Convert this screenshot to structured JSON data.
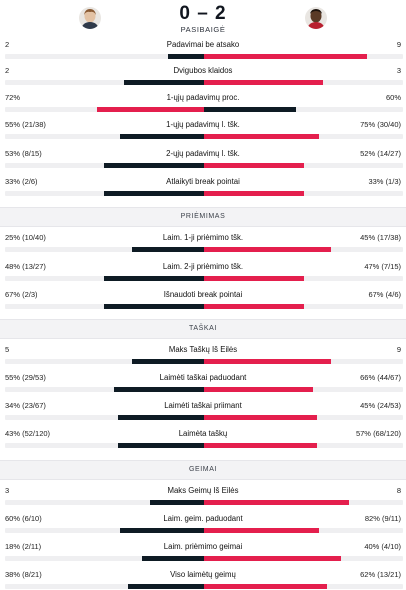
{
  "header": {
    "score": "0 – 2",
    "status": "PASIBAIGĖ",
    "player_left_icon": "player-avatar",
    "player_right_icon": "player-avatar"
  },
  "colors": {
    "winner": "#e41f4d",
    "loser": "#0e1b24",
    "track": "#efeff1"
  },
  "sections": [
    {
      "title": "",
      "rows": [
        {
          "label": "Padavimai be atsako",
          "left": "2",
          "right": "9",
          "left_pct": 18,
          "right_pct": 82
        },
        {
          "label": "Dvigubos klaidos",
          "left": "2",
          "right": "3",
          "left_pct": 40,
          "right_pct": 60
        },
        {
          "label": "1-ųjų padavimų proc.",
          "left": "72%",
          "right": "60%",
          "left_pct": 54,
          "right_pct": 46
        },
        {
          "label": "1-ųjų padavimų l. tšk.",
          "left": "55% (21/38)",
          "right": "75% (30/40)",
          "left_pct": 42,
          "right_pct": 58
        },
        {
          "label": "2-ųjų padavimų l. tšk.",
          "left": "53% (8/15)",
          "right": "52% (14/27)",
          "left_pct": 50,
          "right_pct": 50
        },
        {
          "label": "Atlaikyti break pointai",
          "left": "33% (2/6)",
          "right": "33% (1/3)",
          "left_pct": 50,
          "right_pct": 50
        }
      ]
    },
    {
      "title": "PRIĖMIMAS",
      "rows": [
        {
          "label": "Laim. 1-ji priėmimo tšk.",
          "left": "25% (10/40)",
          "right": "45% (17/38)",
          "left_pct": 36,
          "right_pct": 64
        },
        {
          "label": "Laim. 2-ji priėmimo tšk.",
          "left": "48% (13/27)",
          "right": "47% (7/15)",
          "left_pct": 50,
          "right_pct": 50
        },
        {
          "label": "Išnaudoti break pointai",
          "left": "67% (2/3)",
          "right": "67% (4/6)",
          "left_pct": 50,
          "right_pct": 50
        }
      ]
    },
    {
      "title": "TAŠKAI",
      "rows": [
        {
          "label": "Maks Taškų Iš Eilės",
          "left": "5",
          "right": "9",
          "left_pct": 36,
          "right_pct": 64
        },
        {
          "label": "Laimėti taškai paduodant",
          "left": "55% (29/53)",
          "right": "66% (44/67)",
          "left_pct": 45,
          "right_pct": 55
        },
        {
          "label": "Laimėti taškai priimant",
          "left": "34% (23/67)",
          "right": "45% (24/53)",
          "left_pct": 43,
          "right_pct": 57
        },
        {
          "label": "Laimėta taškų",
          "left": "43% (52/120)",
          "right": "57% (68/120)",
          "left_pct": 43,
          "right_pct": 57
        }
      ]
    },
    {
      "title": "GEIMAI",
      "rows": [
        {
          "label": "Maks Geimų Iš Eilės",
          "left": "3",
          "right": "8",
          "left_pct": 27,
          "right_pct": 73
        },
        {
          "label": "Laim. geim. paduodant",
          "left": "60% (6/10)",
          "right": "82% (9/11)",
          "left_pct": 42,
          "right_pct": 58
        },
        {
          "label": "Laim. priėmimo geimai",
          "left": "18% (2/11)",
          "right": "40% (4/10)",
          "left_pct": 31,
          "right_pct": 69
        },
        {
          "label": "Viso laimėtų geimų",
          "left": "38% (8/21)",
          "right": "62% (13/21)",
          "left_pct": 38,
          "right_pct": 62
        }
      ]
    }
  ]
}
